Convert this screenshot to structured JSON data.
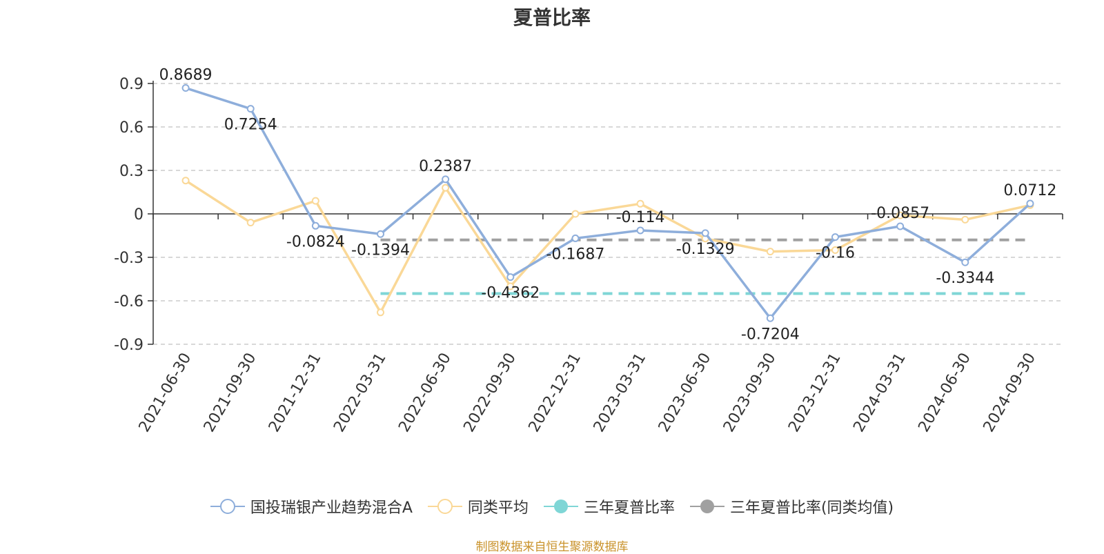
{
  "chart_data": {
    "type": "line",
    "title": "夏普比率",
    "categories": [
      "2021-06-30",
      "2021-09-30",
      "2021-12-31",
      "2022-03-31",
      "2022-06-30",
      "2022-09-30",
      "2022-12-31",
      "2023-03-31",
      "2023-06-30",
      "2023-09-30",
      "2023-12-31",
      "2024-03-31",
      "2024-06-30",
      "2024-09-30"
    ],
    "ylim": [
      -0.9,
      0.9
    ],
    "yticks": [
      "0.9",
      "0.6",
      "0.3",
      "0",
      "-0.3",
      "-0.6",
      "-0.9"
    ],
    "grid": true,
    "legend_position": "bottom",
    "series": [
      {
        "name": "国投瑞银产业趋势混合A",
        "color": "#8eaedb",
        "values": [
          0.8689,
          0.7254,
          -0.0824,
          -0.1394,
          0.2387,
          -0.4362,
          -0.1687,
          -0.114,
          -0.1329,
          -0.7204,
          -0.16,
          -0.0857,
          -0.3344,
          0.0712
        ],
        "labels": [
          "0.8689",
          "0.7254",
          "-0.0824",
          "-0.1394",
          "0.2387",
          "-0.4362",
          "-0.1687",
          "-0.114",
          "-0.1329",
          "-0.7204",
          "-0.16",
          "-0.0857",
          "-0.3344",
          "0.0712"
        ]
      },
      {
        "name": "同类平均",
        "color": "#fad897",
        "values": [
          0.23,
          -0.06,
          0.09,
          -0.68,
          0.18,
          -0.5,
          0.0,
          0.07,
          -0.17,
          -0.26,
          -0.25,
          -0.01,
          -0.04,
          0.06
        ]
      },
      {
        "name": "三年夏普比率",
        "color": "#7fd6d6",
        "value": -0.55,
        "from": "2022-03-31",
        "to": "2024-09-30",
        "style": "dashed"
      },
      {
        "name": "三年夏普比率(同类均值)",
        "color": "#a0a0a0",
        "value": -0.18,
        "from": "2022-03-31",
        "to": "2024-09-30",
        "style": "dashed"
      }
    ]
  },
  "legend": {
    "items": [
      {
        "label": "国投瑞银产业趋势混合A",
        "color": "#8eaedb",
        "marker": "hollow"
      },
      {
        "label": "同类平均",
        "color": "#fad897",
        "marker": "hollow"
      },
      {
        "label": "三年夏普比率",
        "color": "#7fd6d6",
        "marker": "filled"
      },
      {
        "label": "三年夏普比率(同类均值)",
        "color": "#a0a0a0",
        "marker": "filled"
      }
    ]
  },
  "footer": {
    "source": "制图数据来自恒生聚源数据库"
  }
}
